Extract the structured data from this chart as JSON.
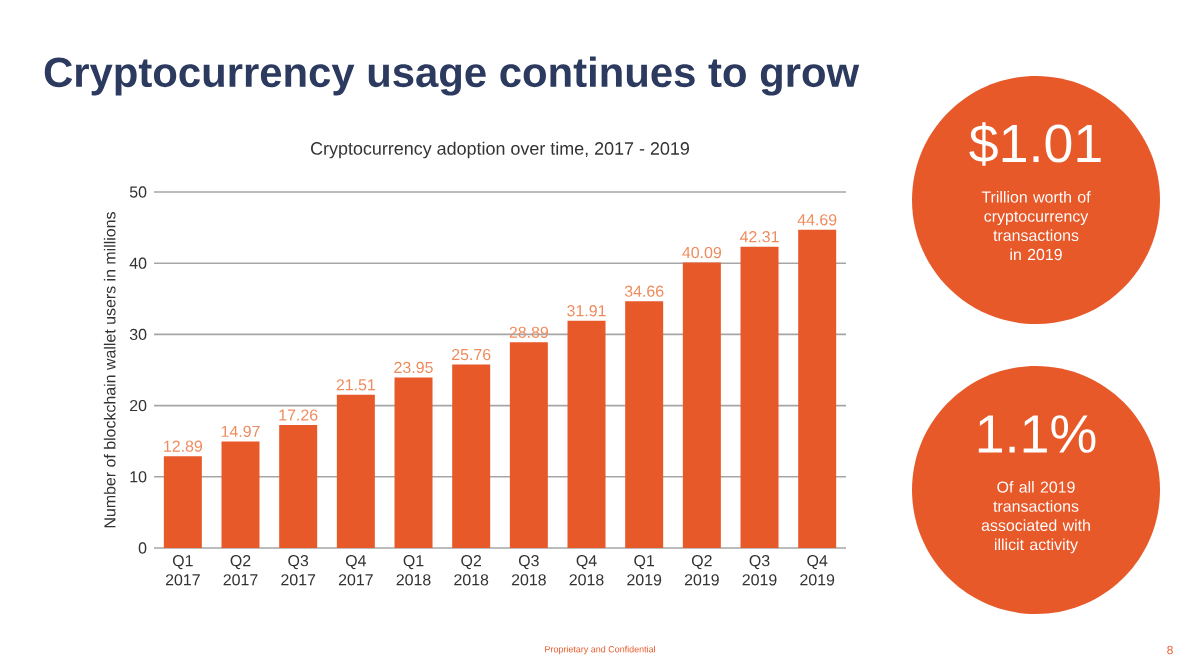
{
  "chart_data": [
    {
      "type": "bar",
      "title": "Cryptocurrency usage continues to grow",
      "subtitle": "Cryptocurrency adoption over time, 2017 - 2019",
      "ylabel": "Number of blockchain wallet users in millions",
      "categories": [
        "Q1 2017",
        "Q2 2017",
        "Q3 2017",
        "Q4 2017",
        "Q1 2018",
        "Q2 2018",
        "Q3 2018",
        "Q4 2018",
        "Q1 2019",
        "Q2 2019",
        "Q3 2019",
        "Q4 2019"
      ],
      "values": [
        12.89,
        14.97,
        17.26,
        21.51,
        23.95,
        25.76,
        28.89,
        31.91,
        34.66,
        40.09,
        42.31,
        44.69
      ],
      "color": "#e8592a",
      "ylim": [
        0,
        50
      ],
      "yticks": [
        0,
        10,
        20,
        30,
        40,
        50
      ],
      "grid": "y",
      "data_labels": true,
      "annotations": [
        "Proprietary and Confidential",
        "8"
      ]
    },
    {
      "type": "other",
      "annotations": [
        "$1.01",
        "Trillion worth of cryptocurrency transactions in 2019",
        "1.1%",
        "Of all 2019 transactions associated with illicit activity"
      ]
    }
  ]
}
